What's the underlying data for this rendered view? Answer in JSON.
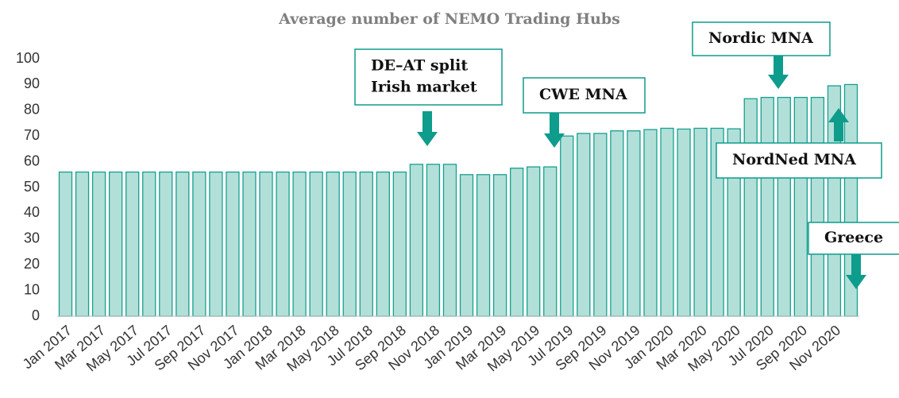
{
  "chart_data": {
    "type": "bar",
    "title": "Average number of NEMO Trading Hubs",
    "categories": [
      "Jan 2017",
      null,
      "Mar 2017",
      null,
      "May 2017",
      null,
      "Jul 2017",
      null,
      "Sep 2017",
      null,
      "Nov 2017",
      null,
      "Jan 2018",
      null,
      "Mar 2018",
      null,
      "May 2018",
      null,
      "Jul 2018",
      null,
      "Sep 2018",
      null,
      "Nov 2018",
      null,
      "Jan 2019",
      null,
      "Mar 2019",
      null,
      "May 2019",
      null,
      "Jul 2019",
      null,
      "Sep 2019",
      null,
      "Nov 2019",
      null,
      "Jan 2020",
      null,
      "Mar 2020",
      null,
      "May 2020",
      null,
      "Jul 2020",
      null,
      "Sep 2020",
      null,
      "Nov 2020",
      null
    ],
    "values": [
      56,
      56,
      56,
      56,
      56,
      56,
      56,
      56,
      56,
      56,
      56,
      56,
      56,
      56,
      56,
      56,
      56,
      56,
      56,
      56,
      56,
      59,
      59,
      59,
      55,
      55,
      55,
      57.5,
      58,
      58,
      70,
      71,
      71,
      72,
      72,
      72.5,
      73,
      72.7,
      73,
      73,
      72.8,
      84.5,
      85,
      85,
      85,
      85,
      89.5,
      90
    ],
    "color": "#b2e0d9",
    "edge_color": "#17a08f",
    "ylim": [
      0,
      100
    ],
    "yticks": [
      0,
      10,
      20,
      30,
      40,
      50,
      60,
      70,
      80,
      90,
      100
    ],
    "grid": false,
    "annotations": [
      {
        "lines": [
          "DE–AT split",
          "Irish market"
        ]
      },
      {
        "lines": [
          "CWE MNA"
        ]
      },
      {
        "lines": [
          "Nordic MNA"
        ]
      },
      {
        "lines": [
          "NordNed MNA"
        ]
      },
      {
        "lines": [
          "Greece"
        ]
      }
    ]
  }
}
